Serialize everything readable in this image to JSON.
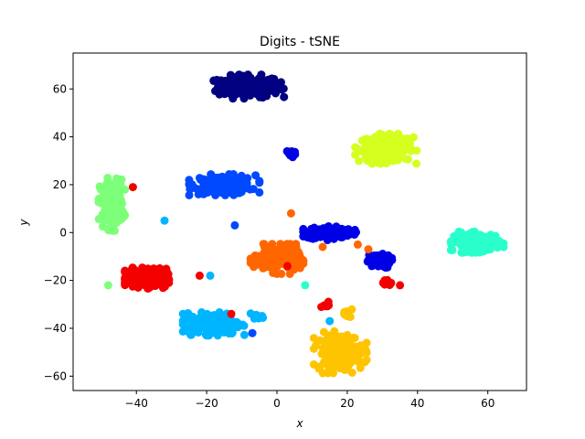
{
  "chart_data": {
    "type": "scatter",
    "title": "Digits - tSNE",
    "xlabel": "x",
    "ylabel": "y",
    "xlim": [
      -58,
      71
    ],
    "ylim": [
      -66,
      75
    ],
    "xticks": [
      "-40",
      "-20",
      "0",
      "20",
      "40",
      "60"
    ],
    "yticks": [
      "-60",
      "-40",
      "-20",
      "0",
      "20",
      "40",
      "60"
    ],
    "grid": false,
    "series": [
      {
        "color": "#000080",
        "clusters": [
          {
            "cx": -8,
            "cy": 61,
            "rx": 8,
            "ry": 4,
            "n": 220
          }
        ]
      },
      {
        "color": "#d4ff1f",
        "clusters": [
          {
            "cx": 31,
            "cy": 35,
            "rx": 7,
            "ry": 5,
            "n": 200
          }
        ]
      },
      {
        "color": "#0049ff",
        "clusters": [
          {
            "cx": -15,
            "cy": 20,
            "rx": 8,
            "ry": 3.5,
            "n": 180
          }
        ]
      },
      {
        "color": "#0000e6",
        "clusters": [
          {
            "cx": 4,
            "cy": 33,
            "rx": 1.2,
            "ry": 1.5,
            "n": 20
          },
          {
            "cx": 15,
            "cy": 0,
            "rx": 6,
            "ry": 2.5,
            "n": 130
          },
          {
            "cx": 29,
            "cy": -12,
            "rx": 3,
            "ry": 2.5,
            "n": 60
          }
        ]
      },
      {
        "color": "#7dff7a",
        "clusters": [
          {
            "cx": -47,
            "cy": 12,
            "rx": 3,
            "ry": 9,
            "n": 180
          }
        ]
      },
      {
        "color": "#2affcc",
        "clusters": [
          {
            "cx": 57,
            "cy": -4,
            "rx": 6,
            "ry": 3.5,
            "n": 190
          }
        ]
      },
      {
        "color": "#ff6600",
        "clusters": [
          {
            "cx": 0,
            "cy": -11,
            "rx": 6,
            "ry": 5,
            "n": 190
          }
        ]
      },
      {
        "color": "#f40000",
        "clusters": [
          {
            "cx": -37,
            "cy": -19,
            "rx": 5,
            "ry": 3.5,
            "n": 210
          },
          {
            "cx": 31,
            "cy": -21,
            "rx": 1.3,
            "ry": 1.2,
            "n": 14
          },
          {
            "cx": 14,
            "cy": -30,
            "rx": 1.5,
            "ry": 1.4,
            "n": 8
          }
        ]
      },
      {
        "color": "#00b5ff",
        "clusters": [
          {
            "cx": -18,
            "cy": -38,
            "rx": 7,
            "ry": 4,
            "n": 200
          },
          {
            "cx": -5,
            "cy": -35,
            "rx": 2,
            "ry": 1,
            "n": 10
          }
        ]
      },
      {
        "color": "#ffc400",
        "clusters": [
          {
            "cx": 18,
            "cy": -50,
            "rx": 6,
            "ry": 7,
            "n": 200
          },
          {
            "cx": 20,
            "cy": -34,
            "rx": 1.5,
            "ry": 1.5,
            "n": 12
          }
        ]
      }
    ],
    "outliers": [
      {
        "x": -41,
        "y": 19,
        "color": "#f40000"
      },
      {
        "x": -32,
        "y": 5,
        "color": "#00b5ff"
      },
      {
        "x": -48,
        "y": -22,
        "color": "#7dff7a"
      },
      {
        "x": -22,
        "y": -18,
        "color": "#f40000"
      },
      {
        "x": -19,
        "y": -18,
        "color": "#00b5ff"
      },
      {
        "x": -13,
        "y": -34,
        "color": "#f40000"
      },
      {
        "x": -7,
        "y": -42,
        "color": "#0049ff"
      },
      {
        "x": -12,
        "y": 3,
        "color": "#0049ff"
      },
      {
        "x": 4,
        "y": 8,
        "color": "#ff6600"
      },
      {
        "x": 6,
        "y": -8,
        "color": "#ff6600"
      },
      {
        "x": 13,
        "y": -6,
        "color": "#ff6600"
      },
      {
        "x": 8,
        "y": -22,
        "color": "#2affcc"
      },
      {
        "x": 15,
        "y": -37,
        "color": "#00b5ff"
      },
      {
        "x": 26,
        "y": -7,
        "color": "#ff6600"
      },
      {
        "x": 23,
        "y": -5,
        "color": "#ff6600"
      },
      {
        "x": 35,
        "y": -22,
        "color": "#f40000"
      },
      {
        "x": 3,
        "y": -14,
        "color": "#f40000"
      }
    ]
  }
}
